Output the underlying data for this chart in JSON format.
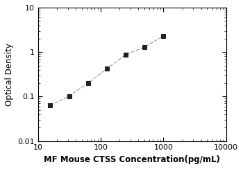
{
  "x_values": [
    15.625,
    31.25,
    62.5,
    125,
    250,
    500,
    1000
  ],
  "y_values": [
    0.063,
    0.103,
    0.2,
    0.42,
    0.88,
    1.3,
    2.3
  ],
  "xlim": [
    10,
    10000
  ],
  "ylim": [
    0.01,
    10
  ],
  "xlabel": "MF Mouse CTSS Concentration(pg/mL)",
  "ylabel": "Optical Density",
  "line_color": "#aaaaaa",
  "marker_color": "#222222",
  "marker": "s",
  "marker_size": 5,
  "line_style": "--",
  "line_width": 1.0,
  "xlabel_fontsize": 8.5,
  "ylabel_fontsize": 8.5,
  "tick_fontsize": 8,
  "background_color": "#ffffff"
}
